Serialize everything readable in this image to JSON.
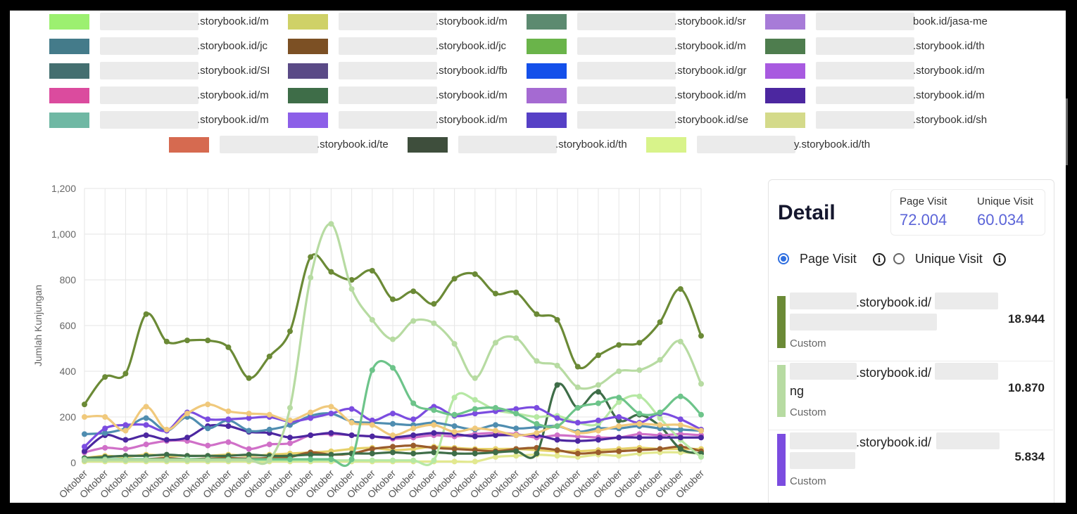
{
  "legend_items": [
    {
      "color": "#9cf070",
      "text": ".storybook.id/m"
    },
    {
      "color": "#cfd167",
      "text": ".storybook.id/m"
    },
    {
      "color": "#5c8a70",
      "text": ".storybook.id/sr"
    },
    {
      "color": "#a77bd8",
      "text": "book.id/jasa-me"
    },
    {
      "color": "#447b8a",
      "text": ".storybook.id/jc"
    },
    {
      "color": "#7c5024",
      "text": ".storybook.id/jc"
    },
    {
      "color": "#6ab44a",
      "text": ".storybook.id/m"
    },
    {
      "color": "#4e7d4e",
      "text": ".storybook.id/th"
    },
    {
      "color": "#446f70",
      "text": ".storybook.id/SI"
    },
    {
      "color": "#5a4a86",
      "text": ".storybook.id/fb"
    },
    {
      "color": "#1450ea",
      "text": ".storybook.id/gr"
    },
    {
      "color": "#a85ae0",
      "text": ".storybook.id/m"
    },
    {
      "color": "#db4b9e",
      "text": ".storybook.id/m"
    },
    {
      "color": "#3e6d48",
      "text": ".storybook.id/m"
    },
    {
      "color": "#a56ad2",
      "text": ".storybook.id/m"
    },
    {
      "color": "#4c27a0",
      "text": ".storybook.id/m"
    },
    {
      "color": "#6fb8a4",
      "text": ".storybook.id/m"
    },
    {
      "color": "#8c5fe8",
      "text": ".storybook.id/m"
    },
    {
      "color": "#5640c6",
      "text": ".storybook.id/se"
    },
    {
      "color": "#d4da8a",
      "text": ".storybook.id/sh"
    },
    {
      "color": "#d66a50",
      "text": ".storybook.id/te"
    },
    {
      "color": "#3e4e3c",
      "text": ".storybook.id/th"
    },
    {
      "color": "#d8f38a",
      "text": "y.storybook.id/th"
    }
  ],
  "detail": {
    "title": "Detail",
    "page_visit_label": "Page Visit",
    "page_visit_value": "72.004",
    "unique_visit_label": "Unique Visit",
    "unique_visit_value": "60.034",
    "radio_page": "Page Visit",
    "radio_unique": "Unique Visit",
    "selected": "Page Visit",
    "info_glyph": "i",
    "items": [
      {
        "color": "#6b8a36",
        "domain": ".storybook.id/",
        "line2": "",
        "tag": "Custom",
        "value": "18.944"
      },
      {
        "color": "#b7dba2",
        "domain": ".storybook.id/",
        "line2": "ng",
        "tag": "Custom",
        "value": "10.870"
      },
      {
        "color": "#7b4ce0",
        "domain": ".storybook.id/",
        "line2": "",
        "tag": "Custom",
        "value": "5.834"
      }
    ]
  },
  "chart_data": {
    "type": "line",
    "ylabel": "Jumlah Kunjungan",
    "xlabel": "",
    "ylim": [
      0,
      1200
    ],
    "yticks": [
      "0",
      "200",
      "400",
      "600",
      "800",
      "1,000",
      "1,200"
    ],
    "categories": [
      "Oktober",
      "Oktober",
      "Oktober",
      "Oktober",
      "Oktober",
      "Oktober",
      "Oktober",
      "Oktober",
      "Oktober",
      "Oktober",
      "Oktober",
      "Oktober",
      "Oktober",
      "Oktober",
      "Oktober",
      "Oktober",
      "Oktober",
      "Oktober",
      "Oktober",
      "Oktober",
      "Oktober",
      "Oktober",
      "Oktober",
      "Oktober",
      "Oktober",
      "Oktober",
      "Oktober",
      "Oktober",
      "Oktober",
      "Oktober",
      "Oktober"
    ],
    "grid": true,
    "series": [
      {
        "color": "#b7dba2",
        "values": [
          12,
          12,
          12,
          12,
          12,
          12,
          12,
          12,
          12,
          12,
          240,
          810,
          1045,
          760,
          625,
          540,
          620,
          610,
          520,
          370,
          525,
          545,
          445,
          425,
          330,
          340,
          400,
          405,
          450,
          530,
          345
        ]
      },
      {
        "color": "#6b8a36",
        "values": [
          255,
          375,
          390,
          650,
          530,
          535,
          535,
          505,
          370,
          465,
          575,
          900,
          835,
          800,
          840,
          715,
          750,
          695,
          805,
          825,
          740,
          745,
          650,
          625,
          420,
          470,
          515,
          525,
          615,
          760,
          555
        ]
      },
      {
        "color": "#6dc48a",
        "values": [
          15,
          15,
          15,
          15,
          15,
          15,
          15,
          15,
          15,
          15,
          15,
          15,
          15,
          15,
          405,
          415,
          260,
          230,
          210,
          235,
          240,
          215,
          170,
          160,
          240,
          260,
          285,
          215,
          220,
          290,
          210
        ]
      },
      {
        "color": "#f0c97c",
        "values": [
          200,
          200,
          140,
          245,
          145,
          215,
          255,
          225,
          215,
          210,
          185,
          220,
          245,
          175,
          165,
          120,
          150,
          165,
          135,
          150,
          140,
          120,
          130,
          160,
          130,
          140,
          160,
          170,
          165,
          165,
          140
        ]
      },
      {
        "color": "#7b4ce0",
        "values": [
          70,
          150,
          165,
          165,
          140,
          220,
          190,
          190,
          195,
          200,
          180,
          195,
          215,
          235,
          185,
          215,
          190,
          245,
          205,
          215,
          225,
          235,
          240,
          195,
          175,
          185,
          200,
          175,
          215,
          190,
          145
        ]
      },
      {
        "color": "#4f8db0",
        "values": [
          125,
          130,
          150,
          195,
          140,
          200,
          150,
          185,
          140,
          145,
          165,
          205,
          215,
          180,
          175,
          170,
          165,
          175,
          160,
          145,
          165,
          150,
          155,
          160,
          135,
          150,
          150,
          160,
          150,
          145,
          140
        ]
      },
      {
        "color": "#4c27a0",
        "values": [
          50,
          120,
          100,
          120,
          100,
          110,
          160,
          160,
          135,
          130,
          110,
          120,
          130,
          120,
          115,
          110,
          120,
          130,
          125,
          115,
          120,
          120,
          120,
          100,
          95,
          100,
          110,
          110,
          110,
          110,
          110
        ]
      },
      {
        "color": "#b6e8a4",
        "values": [
          10,
          10,
          10,
          10,
          10,
          10,
          10,
          10,
          10,
          10,
          10,
          10,
          10,
          10,
          10,
          10,
          10,
          10,
          285,
          275,
          230,
          215,
          200,
          205,
          175,
          170,
          265,
          290,
          195,
          100,
          25
        ]
      },
      {
        "color": "#d070c8",
        "values": [
          45,
          65,
          60,
          80,
          95,
          95,
          75,
          90,
          60,
          80,
          85,
          120,
          125,
          120,
          115,
          105,
          110,
          120,
          115,
          125,
          130,
          125,
          110,
          120,
          115,
          110,
          110,
          125,
          120,
          125,
          120
        ]
      },
      {
        "color": "#3e6d48",
        "values": [
          20,
          25,
          30,
          30,
          35,
          30,
          30,
          30,
          35,
          30,
          30,
          35,
          35,
          40,
          40,
          45,
          40,
          45,
          40,
          40,
          45,
          50,
          40,
          340,
          240,
          310,
          185,
          210,
          160,
          60,
          40
        ]
      },
      {
        "color": "#9a5c2c",
        "values": [
          10,
          15,
          12,
          15,
          20,
          15,
          18,
          20,
          18,
          20,
          25,
          45,
          35,
          40,
          60,
          70,
          75,
          65,
          60,
          55,
          50,
          60,
          65,
          55,
          40,
          45,
          50,
          55,
          60,
          70,
          50
        ]
      },
      {
        "color": "#e6d16a",
        "values": [
          20,
          30,
          25,
          35,
          30,
          30,
          30,
          35,
          30,
          35,
          40,
          45,
          50,
          60,
          65,
          55,
          60,
          70,
          65,
          60,
          60,
          60,
          55,
          50,
          50,
          55,
          60,
          65,
          60,
          60,
          60
        ]
      },
      {
        "color": "#e2e88f",
        "values": [
          5,
          5,
          5,
          5,
          5,
          5,
          5,
          5,
          5,
          5,
          5,
          5,
          5,
          5,
          5,
          5,
          5,
          5,
          5,
          5,
          25,
          30,
          35,
          30,
          25,
          35,
          30,
          40,
          45,
          45,
          40
        ]
      }
    ]
  }
}
